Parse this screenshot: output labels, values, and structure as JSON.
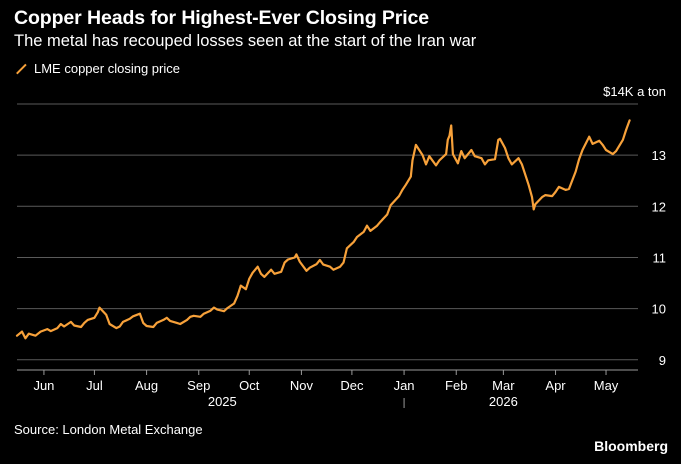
{
  "header": {
    "title": "Copper Heads for Highest-Ever Closing Price",
    "subtitle": "The metal has recouped losses seen at the start of the Iran war"
  },
  "footer": {
    "source": "Source: London Metal Exchange",
    "brand": "Bloomberg"
  },
  "colors": {
    "background": "#000000",
    "line": "#f7a13a",
    "grid": "#5a5a5a",
    "text": "#ffffff"
  },
  "chart_data": {
    "type": "line",
    "title": "Copper Heads for Highest-Ever Closing Price",
    "subtitle": "The metal has recouped losses seen at the start of the Iran war",
    "unit_label": "$14K a ton",
    "ylim": [
      8.8,
      14.0
    ],
    "y_ticks": [
      9,
      10,
      11,
      12,
      13
    ],
    "y_tick_labels": [
      "9",
      "10",
      "11",
      "12",
      "13"
    ],
    "y_axis_side": "right",
    "grid": true,
    "legend": {
      "position": "top-left",
      "entries": [
        "LME copper closing price"
      ]
    },
    "x_range": [
      "2025-05-16",
      "2026-05-20"
    ],
    "x_ticks": [
      {
        "date": "2025-06-01",
        "label": "Jun"
      },
      {
        "date": "2025-07-01",
        "label": "Jul"
      },
      {
        "date": "2025-08-01",
        "label": "Aug"
      },
      {
        "date": "2025-09-01",
        "label": "Sep"
      },
      {
        "date": "2025-10-01",
        "label": "Oct"
      },
      {
        "date": "2025-11-01",
        "label": "Nov"
      },
      {
        "date": "2025-12-01",
        "label": "Dec"
      },
      {
        "date": "2026-01-01",
        "label": "Jan"
      },
      {
        "date": "2026-02-01",
        "label": "Feb"
      },
      {
        "date": "2026-03-01",
        "label": "Mar"
      },
      {
        "date": "2026-04-01",
        "label": "Apr"
      },
      {
        "date": "2026-05-01",
        "label": "May"
      }
    ],
    "year_labels": [
      {
        "date": "2025-09-15",
        "label": "2025"
      },
      {
        "date": "2026-03-01",
        "label": "2026"
      }
    ],
    "year_divider": "2026-01-01",
    "series": [
      {
        "name": "LME copper closing price",
        "points": [
          [
            "2025-05-16",
            9.47
          ],
          [
            "2025-05-19",
            9.55
          ],
          [
            "2025-05-21",
            9.42
          ],
          [
            "2025-05-23",
            9.51
          ],
          [
            "2025-05-27",
            9.47
          ],
          [
            "2025-05-30",
            9.55
          ],
          [
            "2025-06-03",
            9.6
          ],
          [
            "2025-06-05",
            9.56
          ],
          [
            "2025-06-09",
            9.62
          ],
          [
            "2025-06-11",
            9.7
          ],
          [
            "2025-06-13",
            9.65
          ],
          [
            "2025-06-17",
            9.74
          ],
          [
            "2025-06-19",
            9.67
          ],
          [
            "2025-06-23",
            9.64
          ],
          [
            "2025-06-25",
            9.72
          ],
          [
            "2025-06-27",
            9.78
          ],
          [
            "2025-07-01",
            9.82
          ],
          [
            "2025-07-03",
            9.93
          ],
          [
            "2025-07-04",
            10.02
          ],
          [
            "2025-07-08",
            9.88
          ],
          [
            "2025-07-10",
            9.7
          ],
          [
            "2025-07-14",
            9.62
          ],
          [
            "2025-07-16",
            9.65
          ],
          [
            "2025-07-18",
            9.74
          ],
          [
            "2025-07-22",
            9.8
          ],
          [
            "2025-07-24",
            9.85
          ],
          [
            "2025-07-28",
            9.9
          ],
          [
            "2025-07-30",
            9.72
          ],
          [
            "2025-08-01",
            9.66
          ],
          [
            "2025-08-05",
            9.64
          ],
          [
            "2025-08-07",
            9.72
          ],
          [
            "2025-08-11",
            9.78
          ],
          [
            "2025-08-13",
            9.82
          ],
          [
            "2025-08-15",
            9.76
          ],
          [
            "2025-08-19",
            9.72
          ],
          [
            "2025-08-21",
            9.7
          ],
          [
            "2025-08-25",
            9.78
          ],
          [
            "2025-08-27",
            9.84
          ],
          [
            "2025-08-29",
            9.86
          ],
          [
            "2025-09-02",
            9.84
          ],
          [
            "2025-09-04",
            9.9
          ],
          [
            "2025-09-08",
            9.96
          ],
          [
            "2025-09-10",
            10.02
          ],
          [
            "2025-09-12",
            9.98
          ],
          [
            "2025-09-16",
            9.95
          ],
          [
            "2025-09-18",
            10.01
          ],
          [
            "2025-09-22",
            10.1
          ],
          [
            "2025-09-24",
            10.25
          ],
          [
            "2025-09-26",
            10.45
          ],
          [
            "2025-09-29",
            10.38
          ],
          [
            "2025-10-01",
            10.58
          ],
          [
            "2025-10-03",
            10.7
          ],
          [
            "2025-10-06",
            10.82
          ],
          [
            "2025-10-08",
            10.68
          ],
          [
            "2025-10-10",
            10.62
          ],
          [
            "2025-10-14",
            10.76
          ],
          [
            "2025-10-16",
            10.68
          ],
          [
            "2025-10-20",
            10.72
          ],
          [
            "2025-10-22",
            10.9
          ],
          [
            "2025-10-24",
            10.96
          ],
          [
            "2025-10-28",
            11.0
          ],
          [
            "2025-10-29",
            11.06
          ],
          [
            "2025-10-31",
            10.92
          ],
          [
            "2025-11-04",
            10.74
          ],
          [
            "2025-11-06",
            10.8
          ],
          [
            "2025-11-10",
            10.87
          ],
          [
            "2025-11-12",
            10.95
          ],
          [
            "2025-11-14",
            10.86
          ],
          [
            "2025-11-18",
            10.82
          ],
          [
            "2025-11-20",
            10.76
          ],
          [
            "2025-11-24",
            10.82
          ],
          [
            "2025-11-26",
            10.9
          ],
          [
            "2025-11-28",
            11.18
          ],
          [
            "2025-12-02",
            11.3
          ],
          [
            "2025-12-04",
            11.4
          ],
          [
            "2025-12-08",
            11.5
          ],
          [
            "2025-12-10",
            11.62
          ],
          [
            "2025-12-12",
            11.52
          ],
          [
            "2025-12-16",
            11.62
          ],
          [
            "2025-12-18",
            11.7
          ],
          [
            "2025-12-22",
            11.84
          ],
          [
            "2025-12-24",
            12.02
          ],
          [
            "2025-12-29",
            12.2
          ],
          [
            "2025-12-31",
            12.32
          ],
          [
            "2026-01-02",
            12.42
          ],
          [
            "2026-01-05",
            12.58
          ],
          [
            "2026-01-06",
            12.9
          ],
          [
            "2026-01-08",
            13.2
          ],
          [
            "2026-01-12",
            13.0
          ],
          [
            "2026-01-14",
            12.82
          ],
          [
            "2026-01-16",
            12.98
          ],
          [
            "2026-01-20",
            12.8
          ],
          [
            "2026-01-22",
            12.9
          ],
          [
            "2026-01-26",
            13.02
          ],
          [
            "2026-01-27",
            13.3
          ],
          [
            "2026-01-28",
            13.38
          ],
          [
            "2026-01-29",
            13.58
          ],
          [
            "2026-01-30",
            13.02
          ],
          [
            "2026-02-02",
            12.84
          ],
          [
            "2026-02-04",
            13.08
          ],
          [
            "2026-02-06",
            12.94
          ],
          [
            "2026-02-10",
            13.1
          ],
          [
            "2026-02-12",
            12.98
          ],
          [
            "2026-02-16",
            12.94
          ],
          [
            "2026-02-18",
            12.82
          ],
          [
            "2026-02-20",
            12.9
          ],
          [
            "2026-02-24",
            12.92
          ],
          [
            "2026-02-26",
            13.3
          ],
          [
            "2026-02-27",
            13.32
          ],
          [
            "2026-03-02",
            13.14
          ],
          [
            "2026-03-04",
            12.94
          ],
          [
            "2026-03-06",
            12.82
          ],
          [
            "2026-03-10",
            12.94
          ],
          [
            "2026-03-12",
            12.82
          ],
          [
            "2026-03-16",
            12.42
          ],
          [
            "2026-03-18",
            12.18
          ],
          [
            "2026-03-19",
            11.94
          ],
          [
            "2026-03-20",
            12.04
          ],
          [
            "2026-03-24",
            12.18
          ],
          [
            "2026-03-26",
            12.22
          ],
          [
            "2026-03-30",
            12.2
          ],
          [
            "2026-04-01",
            12.28
          ],
          [
            "2026-04-03",
            12.38
          ],
          [
            "2026-04-07",
            12.32
          ],
          [
            "2026-04-09",
            12.34
          ],
          [
            "2026-04-13",
            12.68
          ],
          [
            "2026-04-15",
            12.92
          ],
          [
            "2026-04-17",
            13.1
          ],
          [
            "2026-04-21",
            13.36
          ],
          [
            "2026-04-23",
            13.22
          ],
          [
            "2026-04-27",
            13.28
          ],
          [
            "2026-04-29",
            13.2
          ],
          [
            "2026-05-01",
            13.1
          ],
          [
            "2026-05-05",
            13.02
          ],
          [
            "2026-05-07",
            13.08
          ],
          [
            "2026-05-11",
            13.3
          ],
          [
            "2026-05-13",
            13.5
          ],
          [
            "2026-05-15",
            13.68
          ]
        ]
      }
    ]
  }
}
